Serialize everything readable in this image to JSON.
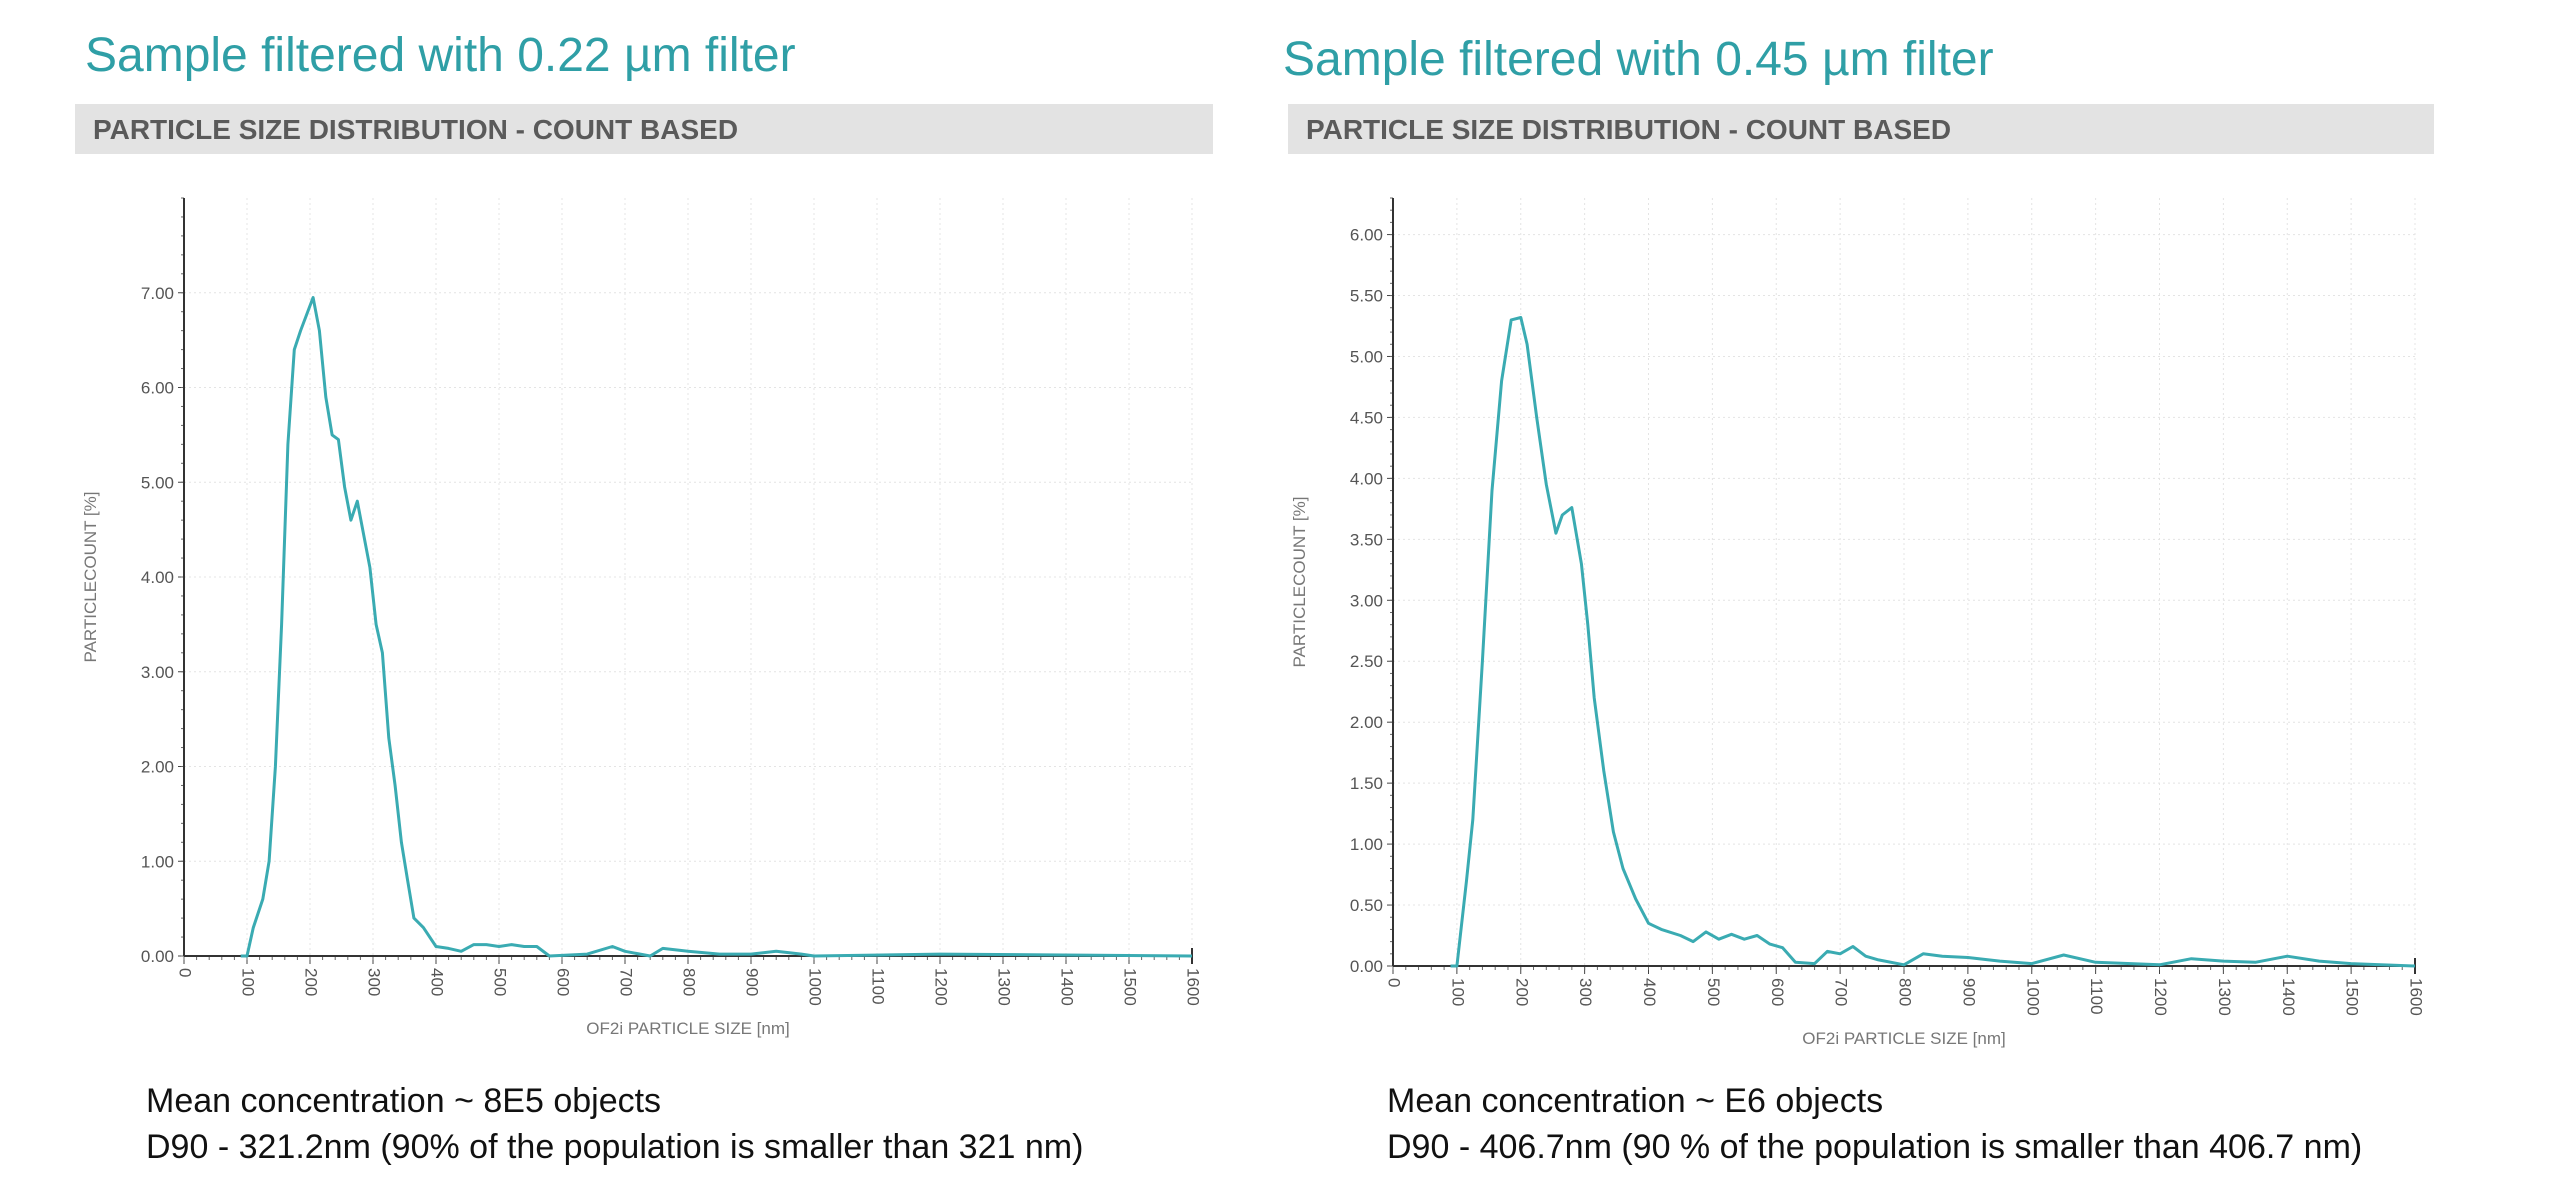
{
  "panels": [
    {
      "title": "Sample filtered with 0.22 µm filter",
      "header": "PARTICLE SIZE DISTRIBUTION - COUNT BASED",
      "notes": [
        "Mean concentration ~ 8E5 objects",
        "D90 - 321.2nm (90% of the population is smaller than 321 nm)"
      ]
    },
    {
      "title": "Sample filtered with 0.45 µm filter",
      "header": "PARTICLE SIZE DISTRIBUTION - COUNT BASED",
      "notes": [
        "Mean concentration ~ E6 objects",
        "D90 - 406.7nm (90 % of the population is smaller than 406.7 nm)"
      ]
    }
  ],
  "colors": {
    "title": "#2f9fa6",
    "line": "#3aabb2",
    "header_bg": "#e3e3e3"
  },
  "chart_data": [
    {
      "type": "line",
      "xlabel": "OF2i PARTICLE SIZE [nm]",
      "ylabel": "PARTICLECOUNT [%]",
      "xlim": [
        0,
        1600
      ],
      "ylim": [
        0,
        8
      ],
      "xticks": [
        "0",
        "100",
        "200",
        "300",
        "400",
        "500",
        "600",
        "700",
        "800",
        "900",
        "1000",
        "1100",
        "1200",
        "1300",
        "1400",
        "1500",
        "1600"
      ],
      "yticks": [
        "0.00",
        "1.00",
        "2.00",
        "3.00",
        "4.00",
        "5.00",
        "6.00",
        "7.00"
      ],
      "grid": true,
      "x": [
        90,
        100,
        110,
        125,
        135,
        145,
        155,
        165,
        175,
        185,
        205,
        215,
        225,
        235,
        245,
        255,
        265,
        275,
        285,
        295,
        305,
        315,
        325,
        335,
        345,
        355,
        365,
        380,
        400,
        420,
        440,
        460,
        480,
        500,
        520,
        540,
        560,
        580,
        640,
        680,
        700,
        740,
        760,
        800,
        850,
        900,
        940,
        980,
        1000,
        1200,
        1600
      ],
      "y": [
        0,
        0,
        0.3,
        0.6,
        1.0,
        2.0,
        3.5,
        5.4,
        6.4,
        6.6,
        6.95,
        6.6,
        5.9,
        5.5,
        5.45,
        4.95,
        4.6,
        4.8,
        4.45,
        4.1,
        3.5,
        3.2,
        2.3,
        1.8,
        1.2,
        0.8,
        0.4,
        0.3,
        0.1,
        0.08,
        0.05,
        0.12,
        0.12,
        0.1,
        0.12,
        0.1,
        0.1,
        0,
        0.02,
        0.1,
        0.05,
        0,
        0.08,
        0.05,
        0.02,
        0.02,
        0.05,
        0.02,
        0,
        0.02,
        0
      ]
    },
    {
      "type": "line",
      "xlabel": "OF2i PARTICLE SIZE [nm]",
      "ylabel": "PARTICLECOUNT [%]",
      "xlim": [
        0,
        1600
      ],
      "ylim": [
        0,
        6.3
      ],
      "xticks": [
        "0",
        "100",
        "200",
        "300",
        "400",
        "500",
        "600",
        "700",
        "800",
        "900",
        "1000",
        "1100",
        "1200",
        "1300",
        "1400",
        "1500",
        "1600"
      ],
      "yticks": [
        "0.00",
        "0.50",
        "1.00",
        "1.50",
        "2.00",
        "2.50",
        "3.00",
        "3.50",
        "4.00",
        "4.50",
        "5.00",
        "5.50",
        "6.00"
      ],
      "grid": true,
      "x": [
        90,
        100,
        115,
        125,
        140,
        155,
        170,
        185,
        200,
        210,
        225,
        240,
        255,
        265,
        280,
        295,
        305,
        315,
        330,
        345,
        360,
        380,
        400,
        420,
        450,
        470,
        490,
        510,
        530,
        550,
        570,
        590,
        610,
        630,
        660,
        680,
        700,
        720,
        740,
        760,
        800,
        830,
        860,
        900,
        950,
        1000,
        1050,
        1100,
        1200,
        1250,
        1300,
        1350,
        1400,
        1450,
        1500,
        1600
      ],
      "y": [
        0,
        0,
        0.7,
        1.2,
        2.5,
        3.9,
        4.8,
        5.3,
        5.32,
        5.1,
        4.5,
        3.95,
        3.55,
        3.7,
        3.76,
        3.3,
        2.8,
        2.2,
        1.6,
        1.1,
        0.8,
        0.55,
        0.35,
        0.3,
        0.25,
        0.2,
        0.28,
        0.22,
        0.26,
        0.22,
        0.25,
        0.18,
        0.15,
        0.03,
        0.02,
        0.12,
        0.1,
        0.16,
        0.08,
        0.05,
        0.01,
        0.1,
        0.08,
        0.07,
        0.04,
        0.02,
        0.09,
        0.03,
        0.01,
        0.06,
        0.04,
        0.03,
        0.08,
        0.04,
        0.02,
        0
      ]
    }
  ]
}
